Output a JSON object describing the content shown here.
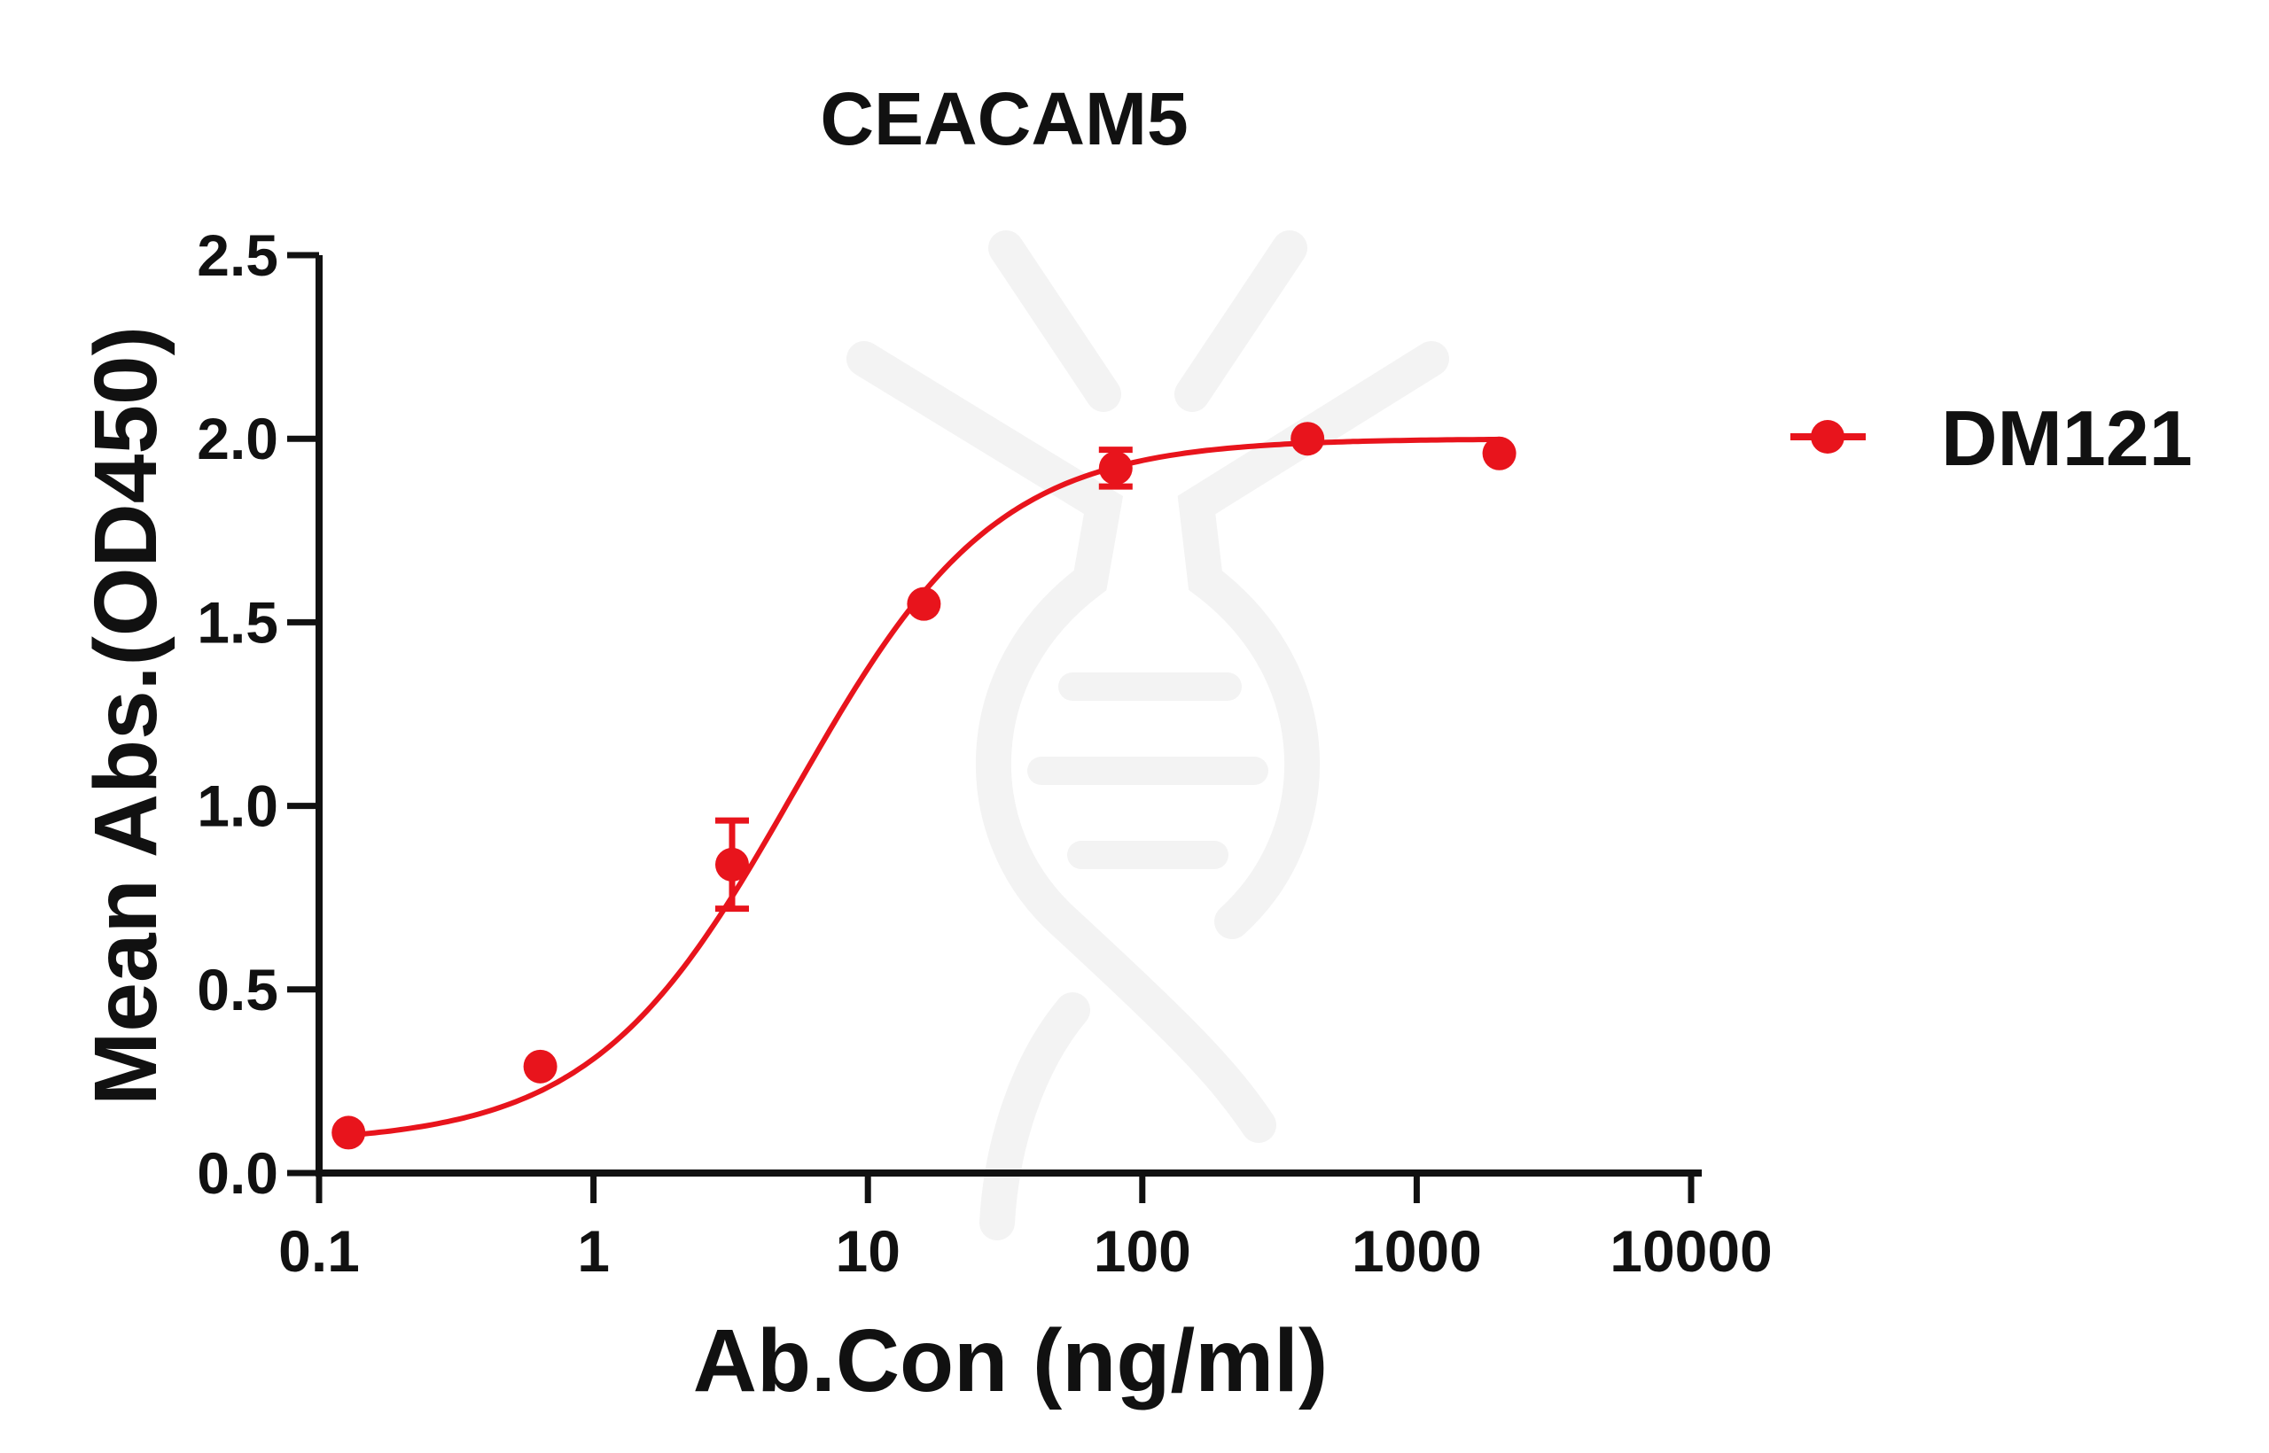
{
  "chart_data": {
    "type": "scatter",
    "title": "CEACAM5",
    "xlabel": "Ab.Con (ng/ml)",
    "ylabel": "Mean Abs.(OD450)",
    "x_scale": "log",
    "xlim": [
      0.1,
      10000
    ],
    "ylim": [
      0,
      2.5
    ],
    "x_ticks": [
      "0.1",
      "1",
      "10",
      "100",
      "1000",
      "10000"
    ],
    "x_tick_values": [
      0.1,
      1,
      10,
      100,
      1000,
      10000
    ],
    "y_ticks": [
      "0.0",
      "0.5",
      "1.0",
      "1.5",
      "2.0",
      "2.5"
    ],
    "y_tick_values": [
      0,
      0.5,
      1.0,
      1.5,
      2.0,
      2.5
    ],
    "grid": false,
    "legend_position": "right",
    "series": [
      {
        "name": "DM121",
        "color": "#e8141c",
        "marker": "circle",
        "fit": "4PL",
        "x": [
          0.128,
          0.64,
          3.2,
          16,
          80,
          400,
          2000
        ],
        "y": [
          0.11,
          0.29,
          0.84,
          1.55,
          1.92,
          2.0,
          1.96
        ],
        "error": [
          0.0,
          0.0,
          0.12,
          0.0,
          0.05,
          0.0,
          0.0
        ]
      }
    ]
  }
}
